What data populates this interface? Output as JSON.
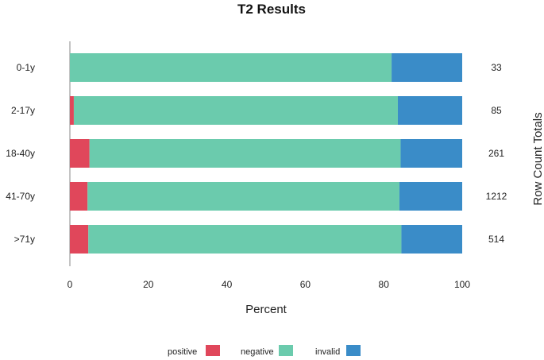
{
  "chart_data": {
    "type": "bar",
    "orientation": "horizontal",
    "stacked": true,
    "title": "T2 Results",
    "xlabel": "Percent",
    "y2label": "Row Count Totals",
    "xlim": [
      0,
      100
    ],
    "xticks": [
      0,
      20,
      40,
      60,
      80,
      100
    ],
    "categories": [
      "0-1y",
      "2-17y",
      "18-40y",
      "41-70y",
      ">71y"
    ],
    "series": [
      {
        "name": "positive",
        "color": "#e0475b",
        "values": [
          0,
          1,
          5,
          4.5,
          4.7
        ]
      },
      {
        "name": "negative",
        "color": "#6bcbad",
        "values": [
          82,
          82.6,
          79.3,
          79.5,
          79.8
        ]
      },
      {
        "name": "invalid",
        "color": "#3a8cc8",
        "values": [
          18,
          16.4,
          15.7,
          16,
          15.5
        ]
      }
    ],
    "row_totals": [
      "33",
      "85",
      "261",
      "1212",
      "514"
    ],
    "legend_position": "bottom",
    "grid": false
  }
}
